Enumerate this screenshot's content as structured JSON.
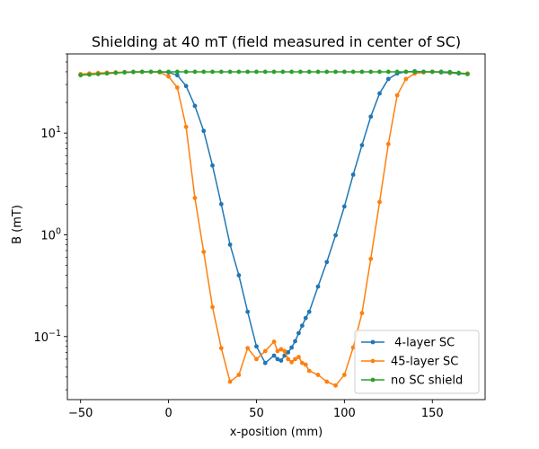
{
  "chart_data": {
    "type": "line",
    "title": "Shielding at 40 mT (field measured in center of SC)",
    "xlabel": "x-position (mm)",
    "ylabel": "B (mT)",
    "xlim": [
      -57.5,
      180
    ],
    "ylim": [
      0.024,
      60
    ],
    "xscale": "linear",
    "yscale": "log",
    "grid": false,
    "legend_position": "lower right",
    "x_ticks": [
      {
        "value": -50,
        "label": "−50"
      },
      {
        "value": 0,
        "label": "0"
      },
      {
        "value": 50,
        "label": "50"
      },
      {
        "value": 100,
        "label": "100"
      },
      {
        "value": 150,
        "label": "150"
      }
    ],
    "y_ticks": [
      {
        "value": 0.1,
        "label": "10",
        "exp": "−1"
      },
      {
        "value": 1,
        "label": "10",
        "exp": "0"
      },
      {
        "value": 10,
        "label": "10",
        "exp": "1"
      }
    ],
    "series": [
      {
        "name": " 4-layer SC",
        "color": "#1f77b4",
        "marker": "circle",
        "points": [
          [
            -50,
            37.5
          ],
          [
            -45,
            38
          ],
          [
            -40,
            38.5
          ],
          [
            -35,
            39
          ],
          [
            -30,
            39.2
          ],
          [
            -25,
            39.5
          ],
          [
            -20,
            39.8
          ],
          [
            -15,
            40
          ],
          [
            -10,
            40
          ],
          [
            -5,
            40
          ],
          [
            0,
            39.5
          ],
          [
            5,
            37
          ],
          [
            10,
            29
          ],
          [
            15,
            18.5
          ],
          [
            20,
            10.5
          ],
          [
            25,
            4.8
          ],
          [
            30,
            2
          ],
          [
            35,
            0.8
          ],
          [
            40,
            0.4
          ],
          [
            45,
            0.175
          ],
          [
            50,
            0.08
          ],
          [
            55,
            0.055
          ],
          [
            60,
            0.065
          ],
          [
            62,
            0.06
          ],
          [
            64,
            0.058
          ],
          [
            66,
            0.065
          ],
          [
            68,
            0.07
          ],
          [
            70,
            0.078
          ],
          [
            72,
            0.09
          ],
          [
            74,
            0.108
          ],
          [
            76,
            0.128
          ],
          [
            78,
            0.152
          ],
          [
            80,
            0.175
          ],
          [
            85,
            0.31
          ],
          [
            90,
            0.54
          ],
          [
            95,
            0.99
          ],
          [
            100,
            1.9
          ],
          [
            105,
            3.9
          ],
          [
            110,
            7.6
          ],
          [
            115,
            14.5
          ],
          [
            120,
            24.5
          ],
          [
            125,
            34
          ],
          [
            130,
            38.5
          ],
          [
            135,
            40
          ],
          [
            140,
            40.5
          ],
          [
            145,
            40
          ],
          [
            150,
            40
          ],
          [
            155,
            39.5
          ],
          [
            160,
            39
          ],
          [
            165,
            38.5
          ],
          [
            170,
            38
          ]
        ]
      },
      {
        "name": "45-layer SC",
        "color": "#ff7f0e",
        "marker": "circle",
        "points": [
          [
            -50,
            38
          ],
          [
            -45,
            38.5
          ],
          [
            -40,
            39
          ],
          [
            -35,
            39.2
          ],
          [
            -30,
            39.5
          ],
          [
            -25,
            39.8
          ],
          [
            -20,
            40
          ],
          [
            -15,
            40
          ],
          [
            -10,
            40
          ],
          [
            -5,
            39.5
          ],
          [
            0,
            36
          ],
          [
            5,
            28
          ],
          [
            10,
            11.5
          ],
          [
            15,
            2.3
          ],
          [
            20,
            0.68
          ],
          [
            25,
            0.195
          ],
          [
            30,
            0.077
          ],
          [
            35,
            0.036
          ],
          [
            40,
            0.042
          ],
          [
            45,
            0.077
          ],
          [
            50,
            0.06
          ],
          [
            55,
            0.072
          ],
          [
            60,
            0.089
          ],
          [
            62,
            0.072
          ],
          [
            64,
            0.075
          ],
          [
            66,
            0.072
          ],
          [
            68,
            0.06
          ],
          [
            70,
            0.056
          ],
          [
            72,
            0.06
          ],
          [
            74,
            0.063
          ],
          [
            76,
            0.055
          ],
          [
            78,
            0.053
          ],
          [
            80,
            0.046
          ],
          [
            85,
            0.042
          ],
          [
            90,
            0.036
          ],
          [
            95,
            0.033
          ],
          [
            100,
            0.042
          ],
          [
            105,
            0.078
          ],
          [
            110,
            0.17
          ],
          [
            115,
            0.58
          ],
          [
            120,
            2.1
          ],
          [
            125,
            7.8
          ],
          [
            130,
            23.5
          ],
          [
            135,
            34
          ],
          [
            140,
            38.5
          ],
          [
            145,
            39.5
          ],
          [
            150,
            40
          ],
          [
            155,
            40
          ],
          [
            160,
            39.5
          ],
          [
            165,
            39
          ],
          [
            170,
            38.5
          ]
        ]
      },
      {
        "name": "no SC shield",
        "color": "#2ca02c",
        "marker": "circle",
        "points": [
          [
            -50,
            37
          ],
          [
            -45,
            37.5
          ],
          [
            -40,
            38
          ],
          [
            -35,
            38.5
          ],
          [
            -30,
            39
          ],
          [
            -25,
            39.5
          ],
          [
            -20,
            39.8
          ],
          [
            -15,
            40
          ],
          [
            -10,
            40
          ],
          [
            -5,
            40
          ],
          [
            0,
            40
          ],
          [
            5,
            40
          ],
          [
            10,
            40
          ],
          [
            15,
            40
          ],
          [
            20,
            40
          ],
          [
            25,
            40
          ],
          [
            30,
            40
          ],
          [
            35,
            40
          ],
          [
            40,
            40
          ],
          [
            45,
            40
          ],
          [
            50,
            40
          ],
          [
            55,
            40
          ],
          [
            60,
            40
          ],
          [
            65,
            40
          ],
          [
            70,
            40
          ],
          [
            75,
            40
          ],
          [
            80,
            40
          ],
          [
            85,
            40
          ],
          [
            90,
            40
          ],
          [
            95,
            40
          ],
          [
            100,
            40
          ],
          [
            105,
            40
          ],
          [
            110,
            40
          ],
          [
            115,
            40
          ],
          [
            120,
            40
          ],
          [
            125,
            40
          ],
          [
            130,
            40
          ],
          [
            135,
            40
          ],
          [
            140,
            40
          ],
          [
            145,
            40
          ],
          [
            150,
            40
          ],
          [
            155,
            40
          ],
          [
            160,
            39.8
          ],
          [
            165,
            39
          ],
          [
            170,
            38
          ]
        ]
      }
    ]
  }
}
